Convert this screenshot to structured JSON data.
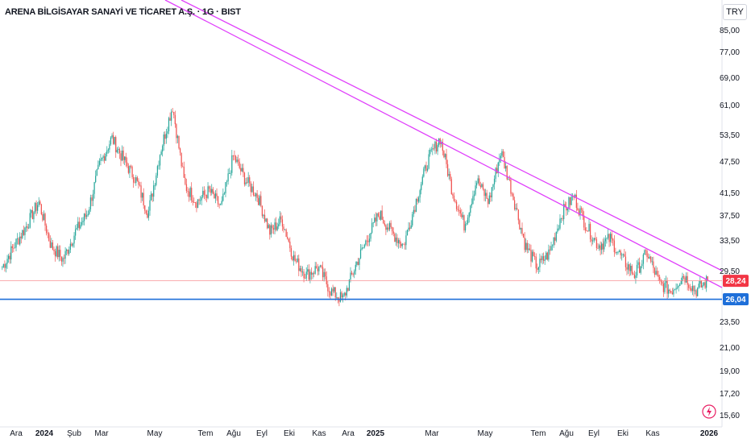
{
  "header": {
    "symbol_title": "ARENA BİLGİSAYAR SANAYİ VE TİCARET A.Ş. · 1G · BIST",
    "currency": "TRY"
  },
  "colors": {
    "up": "#26a69a",
    "down": "#ef5350",
    "trendline": "#e040fb",
    "support": "#1e6fd9",
    "last_price": "#f23645"
  },
  "chart_data": {
    "type": "candlestick",
    "scale": "log",
    "y_ticks": [
      "85,00",
      "77,00",
      "69,00",
      "61,00",
      "53,50",
      "47,50",
      "41,50",
      "37,50",
      "33,50",
      "29,50",
      "23,50",
      "21,00",
      "19,00",
      "17,20",
      "15,60"
    ],
    "x_ticks": [
      {
        "label": "Ara",
        "bold": false
      },
      {
        "label": "2024",
        "bold": true
      },
      {
        "label": "Şub",
        "bold": false
      },
      {
        "label": "Mar",
        "bold": false
      },
      {
        "label": "May",
        "bold": false
      },
      {
        "label": "Tem",
        "bold": false
      },
      {
        "label": "Ağu",
        "bold": false
      },
      {
        "label": "Eyl",
        "bold": false
      },
      {
        "label": "Eki",
        "bold": false
      },
      {
        "label": "Kas",
        "bold": false
      },
      {
        "label": "Ara",
        "bold": false
      },
      {
        "label": "2025",
        "bold": true
      },
      {
        "label": "Mar",
        "bold": false
      },
      {
        "label": "May",
        "bold": false
      },
      {
        "label": "Tem",
        "bold": false
      },
      {
        "label": "Ağu",
        "bold": false
      },
      {
        "label": "Eyl",
        "bold": false
      },
      {
        "label": "Eki",
        "bold": false
      },
      {
        "label": "Kas",
        "bold": false
      },
      {
        "label": "2026",
        "bold": true
      }
    ],
    "last_price": "28,24",
    "support_level": "26,04",
    "approx_close_path": [
      30,
      33,
      36,
      40,
      33,
      31,
      35,
      38,
      47,
      53,
      48,
      44,
      38,
      50,
      61,
      43,
      40,
      42,
      39,
      49,
      44,
      41,
      35,
      37,
      31,
      29,
      30,
      27,
      26,
      30,
      34,
      38,
      35,
      33,
      40,
      48,
      53,
      42,
      36,
      44,
      40,
      50,
      41,
      33,
      30,
      32,
      38,
      41,
      36,
      33,
      34,
      31,
      29,
      32,
      28,
      27,
      29,
      27,
      28.24
    ],
    "trendlines": [
      {
        "name": "upper",
        "from": {
          "date": "2023-12",
          "price": 120
        },
        "to": {
          "date": "2026-01",
          "price": 29.5
        }
      },
      {
        "name": "lower",
        "from": {
          "date": "2023-12",
          "price": 110
        },
        "to": {
          "date": "2026-01",
          "price": 27.5
        }
      }
    ]
  }
}
